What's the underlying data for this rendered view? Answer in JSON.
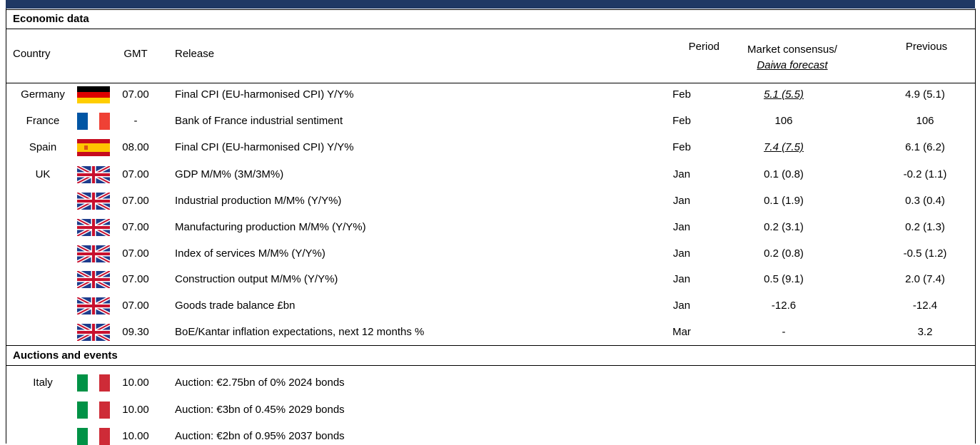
{
  "economic": {
    "title": "Economic data",
    "headers": {
      "country": "Country",
      "gmt": "GMT",
      "release": "Release",
      "period": "Period",
      "consensus": "Market consensus/",
      "forecast": "Daiwa forecast",
      "previous": "Previous"
    },
    "rows": [
      {
        "country": "Germany",
        "gmt": "07.00",
        "release": "Final CPI (EU-harmonised CPI) Y/Y%",
        "period": "Feb",
        "consensus": "5.1 (5.5)",
        "daiwa_forecast": true,
        "previous": "4.9 (5.1)"
      },
      {
        "country": "France",
        "gmt": "-",
        "release": "Bank of France industrial sentiment",
        "period": "Feb",
        "consensus": "106",
        "previous": "106"
      },
      {
        "country": "Spain",
        "gmt": "08.00",
        "release": "Final CPI (EU-harmonised CPI) Y/Y%",
        "period": "Feb",
        "consensus": "7.4 (7.5)",
        "daiwa_forecast": true,
        "previous": "6.1 (6.2)"
      },
      {
        "country": "UK",
        "gmt": "07.00",
        "release": "GDP M/M% (3M/3M%)",
        "period": "Jan",
        "consensus": "0.1 (0.8)",
        "previous": "-0.2 (1.1)"
      },
      {
        "gmt": "07.00",
        "release": "Industrial production M/M% (Y/Y%)",
        "period": "Jan",
        "consensus": "0.1 (1.9)",
        "previous": "0.3 (0.4)"
      },
      {
        "gmt": "07.00",
        "release": "Manufacturing production M/M% (Y/Y%)",
        "period": "Jan",
        "consensus": "0.2 (3.1)",
        "previous": "0.2 (1.3)"
      },
      {
        "gmt": "07.00",
        "release": "Index of services M/M% (Y/Y%)",
        "period": "Jan",
        "consensus": "0.2 (0.8)",
        "previous": "-0.5 (1.2)"
      },
      {
        "gmt": "07.00",
        "release": "Construction output M/M% (Y/Y%)",
        "period": "Jan",
        "consensus": "0.5 (9.1)",
        "previous": "2.0 (7.4)"
      },
      {
        "gmt": "07.00",
        "release": "Goods trade balance £bn",
        "period": "Jan",
        "consensus": "-12.6",
        "previous": "-12.4"
      },
      {
        "gmt": "09.30",
        "release": "BoE/Kantar inflation expectations, next 12 months %",
        "period": "Mar",
        "consensus": "-",
        "previous": "3.2"
      }
    ]
  },
  "auctions": {
    "title": "Auctions and events",
    "rows": [
      {
        "country": "Italy",
        "gmt": "10.00",
        "release": "Auction: €2.75bn of 0% 2024 bonds"
      },
      {
        "gmt": "10.00",
        "release": "Auction: €3bn of 0.45% 2029 bonds"
      },
      {
        "gmt": "10.00",
        "release": "Auction: €2bn of 0.95% 2037 bonds"
      }
    ]
  }
}
